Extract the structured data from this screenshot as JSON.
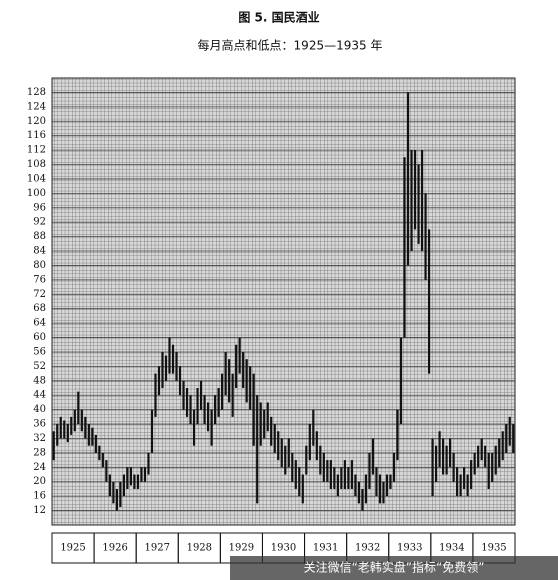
{
  "chart_data": {
    "type": "hilo",
    "title": "图 5. 国民酒业",
    "subtitle": "每月高点和低点：1925—1935 年",
    "categories": [
      "1925",
      "1926",
      "1927",
      "1928",
      "1929",
      "1930",
      "1931",
      "1932",
      "1933",
      "1934",
      "1935"
    ],
    "high": [
      34,
      36,
      38,
      37,
      36,
      38,
      40,
      45,
      40,
      38,
      36,
      35,
      33,
      30,
      28,
      26,
      22,
      20,
      18,
      20,
      22,
      24,
      24,
      22,
      22,
      24,
      24,
      28,
      40,
      50,
      52,
      56,
      55,
      60,
      58,
      56,
      52,
      48,
      46,
      44,
      40,
      46,
      48,
      44,
      42,
      40,
      44,
      46,
      50,
      56,
      54,
      50,
      58,
      60,
      56,
      54,
      52,
      50,
      44,
      42,
      40,
      42,
      38,
      36,
      34,
      32,
      30,
      32,
      28,
      26,
      24,
      22,
      30,
      36,
      40,
      34,
      30,
      28,
      26,
      26,
      24,
      22,
      24,
      26,
      24,
      26,
      22,
      20,
      18,
      22,
      28,
      32,
      24,
      22,
      20,
      22,
      22,
      28,
      40,
      60,
      110,
      128,
      112,
      112,
      108,
      112,
      100,
      90,
      32,
      30,
      34,
      32,
      30,
      32,
      28,
      24,
      22,
      24,
      22,
      26,
      28,
      30,
      32,
      30,
      28,
      28,
      30,
      32,
      34,
      36,
      38,
      36
    ],
    "low": [
      26,
      30,
      32,
      32,
      31,
      33,
      34,
      36,
      34,
      32,
      30,
      30,
      28,
      26,
      24,
      20,
      16,
      14,
      12,
      13,
      16,
      18,
      19,
      18,
      18,
      20,
      20,
      22,
      28,
      38,
      44,
      46,
      48,
      50,
      50,
      48,
      44,
      40,
      38,
      36,
      30,
      36,
      40,
      36,
      34,
      30,
      36,
      38,
      40,
      44,
      42,
      38,
      46,
      50,
      46,
      42,
      40,
      30,
      14,
      30,
      32,
      34,
      30,
      28,
      26,
      24,
      22,
      24,
      20,
      18,
      16,
      14,
      22,
      26,
      30,
      26,
      22,
      20,
      20,
      18,
      18,
      16,
      18,
      18,
      18,
      18,
      16,
      14,
      12,
      14,
      18,
      22,
      16,
      14,
      14,
      16,
      18,
      20,
      26,
      36,
      60,
      80,
      84,
      90,
      86,
      84,
      76,
      50,
      16,
      20,
      24,
      22,
      22,
      24,
      20,
      16,
      16,
      18,
      16,
      18,
      22,
      24,
      26,
      24,
      18,
      20,
      22,
      24,
      26,
      28,
      30,
      28
    ],
    "color": "#111111",
    "ylim": [
      8,
      132
    ],
    "yticks": [
      12,
      16,
      20,
      24,
      28,
      32,
      36,
      40,
      44,
      48,
      52,
      56,
      60,
      64,
      68,
      72,
      76,
      80,
      84,
      88,
      92,
      96,
      100,
      104,
      108,
      112,
      116,
      120,
      124,
      128
    ],
    "grid": true
  },
  "watermark": "关注微信“老韩实盘”指标“免费领”"
}
